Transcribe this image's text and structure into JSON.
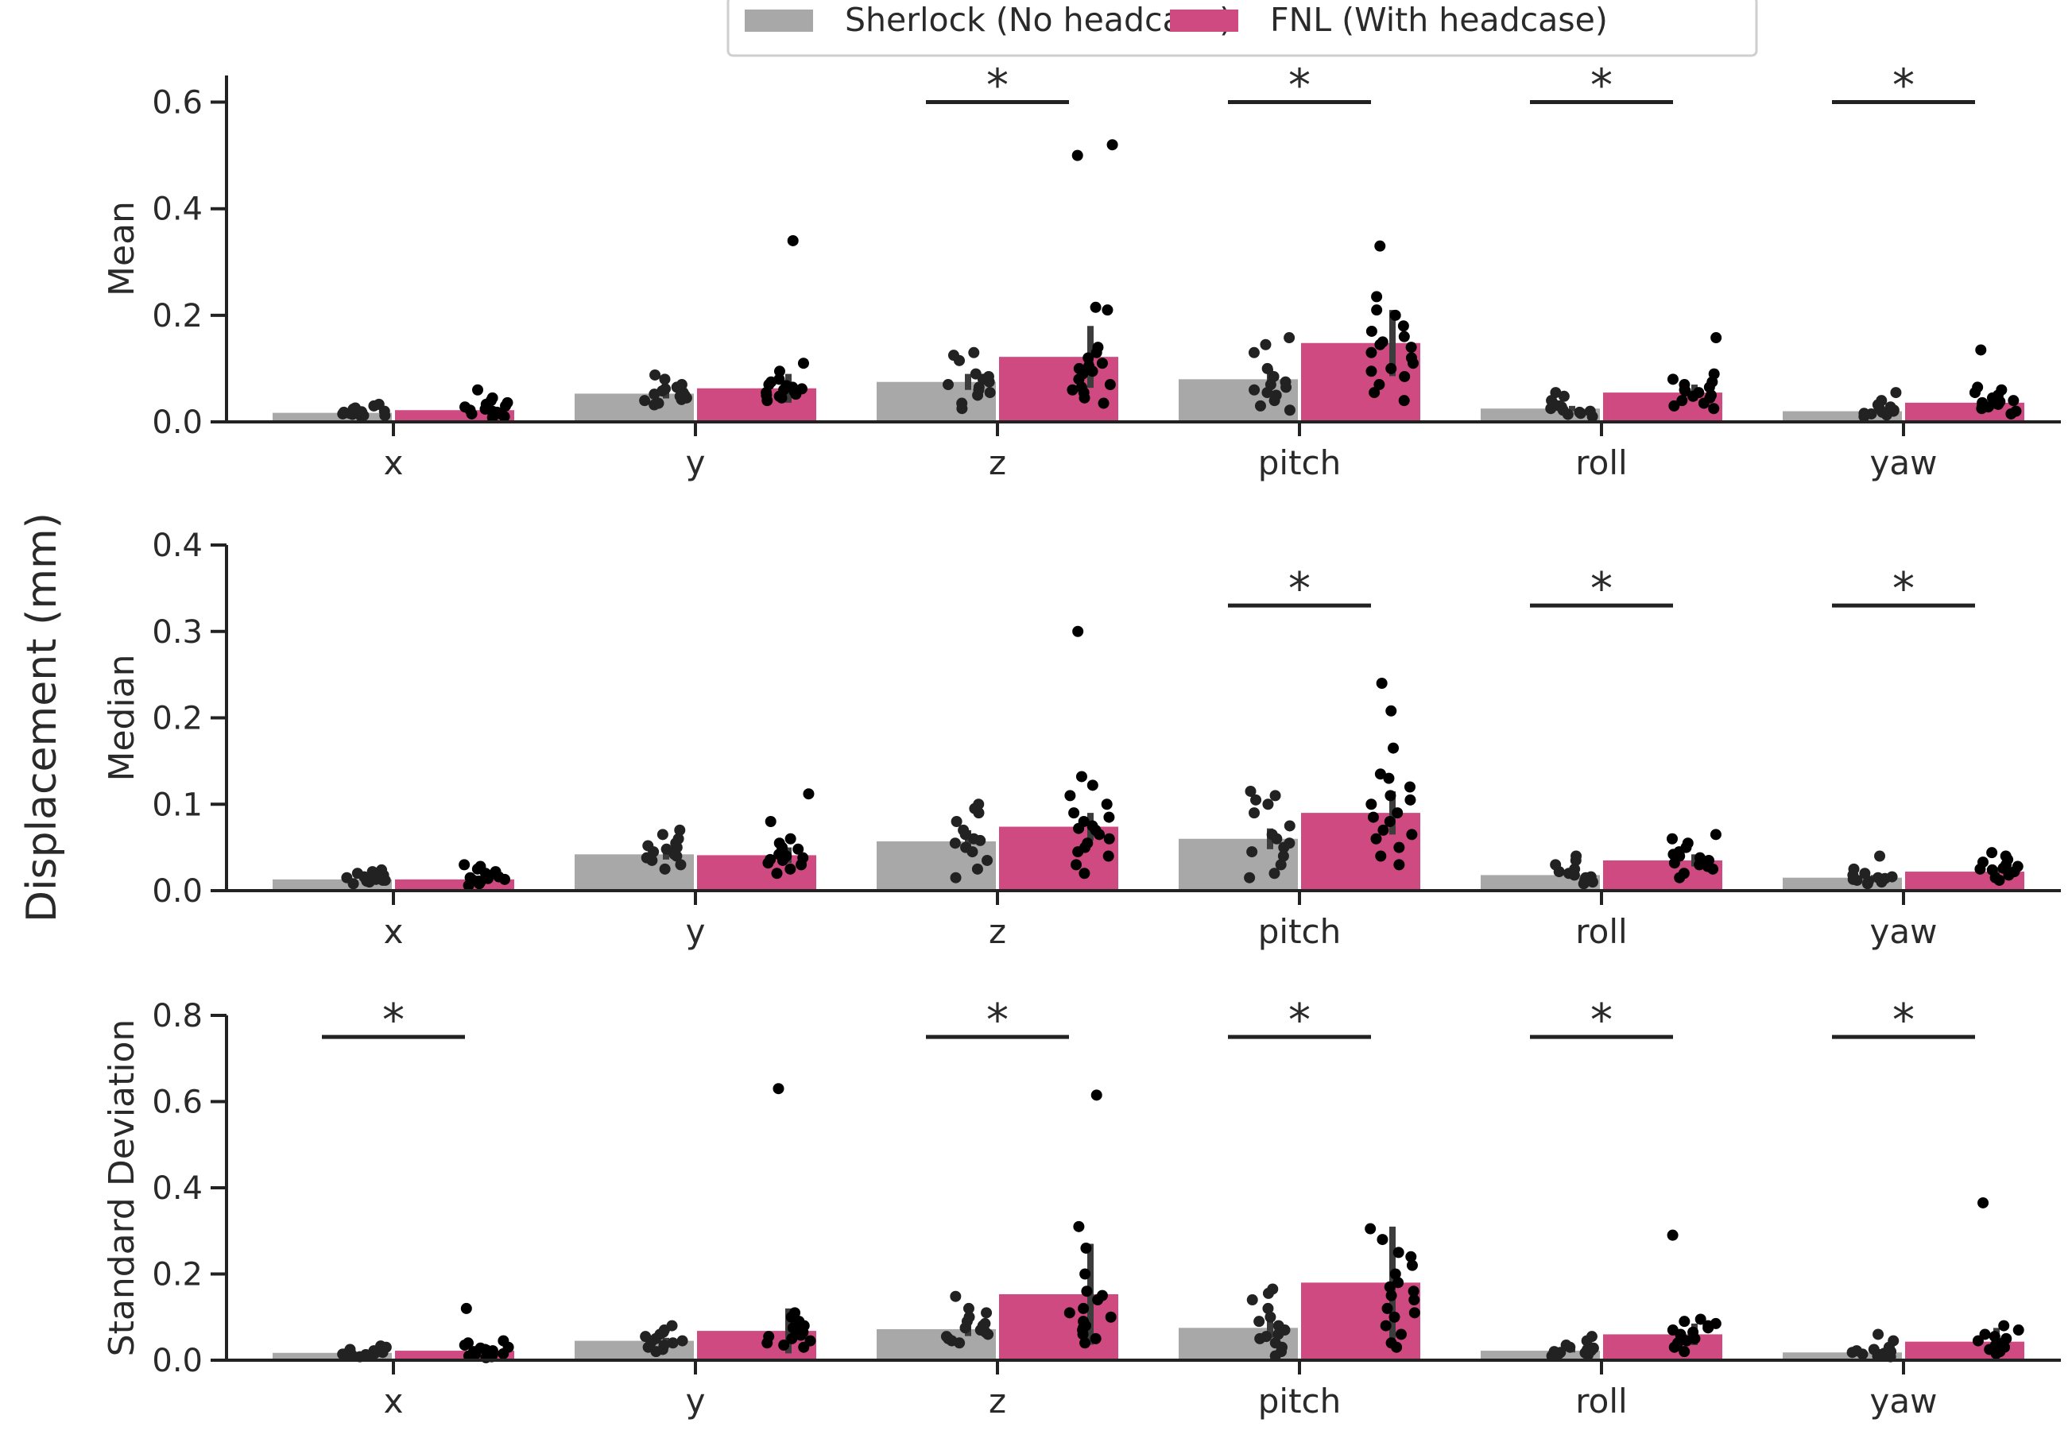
{
  "colors": {
    "sherlock": "#a8a8a8",
    "fnl": "#cf4a80",
    "dots": "#000000",
    "axis": "#222222",
    "errbar": "#3c3c3c"
  },
  "figure": {
    "ylabel": "Displacement (mm)"
  },
  "legend": {
    "placement": "top-center",
    "items": [
      {
        "label": "Sherlock (No headcase)",
        "color": "#a8a8a8"
      },
      {
        "label": "FNL (With headcase)",
        "color": "#cf4a80"
      }
    ]
  },
  "chart_data": [
    {
      "type": "bar",
      "title": "",
      "ylabel": "Mean",
      "xlabel": "",
      "ylim": [
        0,
        0.65
      ],
      "yticks": [
        "0.0",
        "0.2",
        "0.4",
        "0.6"
      ],
      "categories": [
        "x",
        "y",
        "z",
        "pitch",
        "roll",
        "yaw"
      ],
      "series": [
        {
          "name": "Sherlock (No headcase)",
          "values": [
            0.017,
            0.053,
            0.075,
            0.08,
            0.025,
            0.02
          ],
          "err_high": [
            0.022,
            0.062,
            0.09,
            0.1,
            0.03,
            0.024
          ],
          "points": [
            [
              0.01,
              0.012,
              0.014,
              0.015,
              0.016,
              0.018,
              0.02,
              0.022,
              0.024,
              0.026,
              0.03,
              0.033,
              0.012,
              0.019
            ],
            [
              0.032,
              0.035,
              0.04,
              0.045,
              0.048,
              0.052,
              0.055,
              0.058,
              0.062,
              0.065,
              0.07,
              0.08,
              0.088,
              0.042,
              0.05
            ],
            [
              0.025,
              0.035,
              0.05,
              0.06,
              0.065,
              0.07,
              0.075,
              0.08,
              0.085,
              0.09,
              0.115,
              0.125,
              0.13,
              0.055
            ],
            [
              0.022,
              0.03,
              0.04,
              0.05,
              0.06,
              0.065,
              0.07,
              0.075,
              0.085,
              0.1,
              0.13,
              0.145,
              0.158,
              0.055
            ],
            [
              0.01,
              0.014,
              0.018,
              0.02,
              0.022,
              0.025,
              0.028,
              0.03,
              0.035,
              0.04,
              0.048,
              0.055,
              0.016
            ],
            [
              0.01,
              0.013,
              0.016,
              0.018,
              0.02,
              0.022,
              0.025,
              0.028,
              0.032,
              0.04,
              0.055,
              0.015
            ]
          ]
        },
        {
          "name": "FNL (With headcase)",
          "values": [
            0.022,
            0.063,
            0.122,
            0.148,
            0.055,
            0.036
          ],
          "err_high": [
            0.03,
            0.09,
            0.18,
            0.21,
            0.07,
            0.048
          ],
          "points": [
            [
              0.008,
              0.01,
              0.012,
              0.015,
              0.018,
              0.02,
              0.022,
              0.025,
              0.028,
              0.03,
              0.033,
              0.036,
              0.04,
              0.045,
              0.06,
              0.014,
              0.024
            ],
            [
              0.04,
              0.045,
              0.05,
              0.052,
              0.055,
              0.058,
              0.06,
              0.062,
              0.065,
              0.068,
              0.07,
              0.075,
              0.08,
              0.095,
              0.11,
              0.34,
              0.048,
              0.057
            ],
            [
              0.035,
              0.045,
              0.055,
              0.06,
              0.07,
              0.08,
              0.09,
              0.095,
              0.1,
              0.11,
              0.12,
              0.13,
              0.14,
              0.21,
              0.215,
              0.5,
              0.52,
              0.065,
              0.105
            ],
            [
              0.04,
              0.055,
              0.07,
              0.085,
              0.1,
              0.11,
              0.12,
              0.13,
              0.14,
              0.15,
              0.16,
              0.17,
              0.18,
              0.2,
              0.21,
              0.235,
              0.33,
              0.095,
              0.145
            ],
            [
              0.025,
              0.03,
              0.035,
              0.04,
              0.045,
              0.05,
              0.055,
              0.058,
              0.06,
              0.065,
              0.07,
              0.075,
              0.08,
              0.09,
              0.158,
              0.048
            ],
            [
              0.015,
              0.02,
              0.025,
              0.028,
              0.03,
              0.033,
              0.036,
              0.04,
              0.045,
              0.05,
              0.055,
              0.06,
              0.065,
              0.135,
              0.038
            ]
          ]
        }
      ],
      "significance": [
        {
          "category": "z",
          "label": "*",
          "y": 0.6
        },
        {
          "category": "pitch",
          "label": "*",
          "y": 0.6
        },
        {
          "category": "roll",
          "label": "*",
          "y": 0.6
        },
        {
          "category": "yaw",
          "label": "*",
          "y": 0.6
        }
      ]
    },
    {
      "type": "bar",
      "title": "",
      "ylabel": "Median",
      "xlabel": "",
      "ylim": [
        0,
        0.4
      ],
      "yticks": [
        "0.0",
        "0.1",
        "0.2",
        "0.3",
        "0.4"
      ],
      "categories": [
        "x",
        "y",
        "z",
        "pitch",
        "roll",
        "yaw"
      ],
      "series": [
        {
          "name": "Sherlock (No headcase)",
          "values": [
            0.013,
            0.042,
            0.057,
            0.06,
            0.018,
            0.015
          ],
          "err_high": [
            0.016,
            0.048,
            0.07,
            0.072,
            0.021,
            0.018
          ],
          "points": [
            [
              0.008,
              0.01,
              0.011,
              0.012,
              0.013,
              0.014,
              0.015,
              0.016,
              0.018,
              0.02,
              0.022,
              0.024,
              0.012
            ],
            [
              0.025,
              0.03,
              0.035,
              0.04,
              0.042,
              0.045,
              0.048,
              0.05,
              0.052,
              0.055,
              0.06,
              0.065,
              0.07,
              0.038
            ],
            [
              0.015,
              0.025,
              0.035,
              0.045,
              0.05,
              0.055,
              0.06,
              0.065,
              0.07,
              0.08,
              0.09,
              0.095,
              0.1,
              0.058
            ],
            [
              0.015,
              0.02,
              0.03,
              0.04,
              0.045,
              0.055,
              0.06,
              0.065,
              0.075,
              0.09,
              0.1,
              0.105,
              0.11,
              0.115,
              0.05
            ],
            [
              0.008,
              0.01,
              0.012,
              0.014,
              0.016,
              0.018,
              0.02,
              0.022,
              0.025,
              0.03,
              0.035,
              0.04,
              0.015
            ],
            [
              0.008,
              0.01,
              0.012,
              0.013,
              0.014,
              0.015,
              0.016,
              0.018,
              0.02,
              0.025,
              0.04,
              0.011
            ]
          ]
        },
        {
          "name": "FNL (With headcase)",
          "values": [
            0.013,
            0.041,
            0.074,
            0.09,
            0.035,
            0.022
          ],
          "err_high": [
            0.018,
            0.05,
            0.09,
            0.115,
            0.042,
            0.027
          ],
          "points": [
            [
              0.006,
              0.008,
              0.01,
              0.012,
              0.013,
              0.014,
              0.015,
              0.016,
              0.018,
              0.02,
              0.022,
              0.025,
              0.028,
              0.03,
              0.011
            ],
            [
              0.02,
              0.025,
              0.03,
              0.032,
              0.035,
              0.038,
              0.04,
              0.042,
              0.045,
              0.048,
              0.05,
              0.055,
              0.06,
              0.08,
              0.112,
              0.036
            ],
            [
              0.02,
              0.03,
              0.04,
              0.05,
              0.055,
              0.06,
              0.065,
              0.07,
              0.075,
              0.08,
              0.085,
              0.09,
              0.1,
              0.11,
              0.122,
              0.132,
              0.3,
              0.045,
              0.072
            ],
            [
              0.03,
              0.04,
              0.05,
              0.06,
              0.065,
              0.07,
              0.08,
              0.09,
              0.1,
              0.105,
              0.11,
              0.12,
              0.13,
              0.135,
              0.165,
              0.208,
              0.24,
              0.085
            ],
            [
              0.015,
              0.02,
              0.025,
              0.028,
              0.03,
              0.032,
              0.035,
              0.038,
              0.04,
              0.045,
              0.05,
              0.055,
              0.06,
              0.065,
              0.042
            ],
            [
              0.012,
              0.015,
              0.018,
              0.02,
              0.022,
              0.024,
              0.026,
              0.028,
              0.03,
              0.033,
              0.036,
              0.04,
              0.044,
              0.025
            ]
          ]
        }
      ],
      "significance": [
        {
          "category": "pitch",
          "label": "*",
          "y": 0.33
        },
        {
          "category": "roll",
          "label": "*",
          "y": 0.33
        },
        {
          "category": "yaw",
          "label": "*",
          "y": 0.33
        }
      ]
    },
    {
      "type": "bar",
      "title": "",
      "ylabel": "Standard Deviation",
      "xlabel": "",
      "ylim": [
        0,
        0.8
      ],
      "yticks": [
        "0.0",
        "0.2",
        "0.4",
        "0.6",
        "0.8"
      ],
      "categories": [
        "x",
        "y",
        "z",
        "pitch",
        "roll",
        "yaw"
      ],
      "series": [
        {
          "name": "Sherlock (No headcase)",
          "values": [
            0.017,
            0.045,
            0.072,
            0.075,
            0.022,
            0.018
          ],
          "err_high": [
            0.02,
            0.052,
            0.088,
            0.098,
            0.026,
            0.022
          ],
          "points": [
            [
              0.008,
              0.01,
              0.012,
              0.014,
              0.015,
              0.016,
              0.018,
              0.02,
              0.022,
              0.025,
              0.03,
              0.033,
              0.013
            ],
            [
              0.02,
              0.025,
              0.03,
              0.035,
              0.04,
              0.045,
              0.05,
              0.055,
              0.06,
              0.065,
              0.07,
              0.08,
              0.042
            ],
            [
              0.04,
              0.045,
              0.05,
              0.055,
              0.06,
              0.07,
              0.075,
              0.08,
              0.085,
              0.09,
              0.1,
              0.11,
              0.12,
              0.148,
              0.065
            ],
            [
              0.01,
              0.02,
              0.03,
              0.04,
              0.05,
              0.06,
              0.07,
              0.08,
              0.09,
              0.1,
              0.12,
              0.14,
              0.155,
              0.165,
              0.055
            ],
            [
              0.01,
              0.012,
              0.015,
              0.018,
              0.02,
              0.022,
              0.025,
              0.028,
              0.03,
              0.035,
              0.045,
              0.055,
              0.017
            ],
            [
              0.008,
              0.01,
              0.012,
              0.014,
              0.016,
              0.018,
              0.02,
              0.022,
              0.025,
              0.03,
              0.045,
              0.06,
              0.013
            ]
          ]
        },
        {
          "name": "FNL (With headcase)",
          "values": [
            0.022,
            0.068,
            0.153,
            0.18,
            0.06,
            0.043
          ],
          "err_high": [
            0.035,
            0.12,
            0.27,
            0.31,
            0.085,
            0.075
          ],
          "points": [
            [
              0.006,
              0.008,
              0.01,
              0.012,
              0.015,
              0.018,
              0.02,
              0.022,
              0.025,
              0.028,
              0.03,
              0.035,
              0.04,
              0.045,
              0.12,
              0.014
            ],
            [
              0.03,
              0.035,
              0.04,
              0.045,
              0.05,
              0.055,
              0.06,
              0.065,
              0.07,
              0.075,
              0.08,
              0.09,
              0.1,
              0.11,
              0.63,
              0.058
            ],
            [
              0.04,
              0.05,
              0.06,
              0.07,
              0.08,
              0.09,
              0.1,
              0.11,
              0.12,
              0.14,
              0.15,
              0.16,
              0.2,
              0.26,
              0.31,
              0.615,
              0.075
            ],
            [
              0.03,
              0.04,
              0.06,
              0.08,
              0.1,
              0.12,
              0.14,
              0.15,
              0.16,
              0.18,
              0.2,
              0.22,
              0.24,
              0.25,
              0.28,
              0.305,
              0.11,
              0.17
            ],
            [
              0.02,
              0.03,
              0.04,
              0.05,
              0.055,
              0.06,
              0.065,
              0.07,
              0.075,
              0.08,
              0.085,
              0.09,
              0.095,
              0.29,
              0.045
            ],
            [
              0.015,
              0.02,
              0.025,
              0.03,
              0.035,
              0.04,
              0.045,
              0.05,
              0.055,
              0.06,
              0.07,
              0.08,
              0.365,
              0.038
            ]
          ]
        }
      ],
      "significance": [
        {
          "category": "x",
          "label": "*",
          "y": 0.75
        },
        {
          "category": "z",
          "label": "*",
          "y": 0.75
        },
        {
          "category": "pitch",
          "label": "*",
          "y": 0.75
        },
        {
          "category": "roll",
          "label": "*",
          "y": 0.75
        },
        {
          "category": "yaw",
          "label": "*",
          "y": 0.75
        }
      ]
    }
  ]
}
